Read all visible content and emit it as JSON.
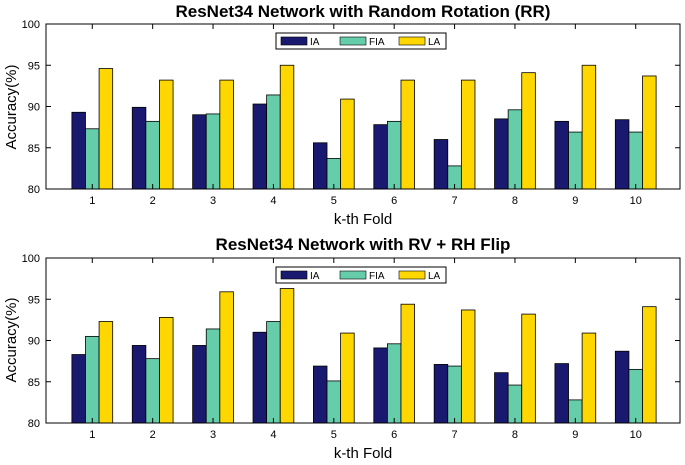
{
  "chart_data": [
    {
      "type": "bar",
      "title": "ResNet34 Network with Random Rotation (RR)",
      "xlabel": "k-th Fold",
      "ylabel": "Accuracy(%)",
      "ylim": [
        80,
        100
      ],
      "yticks": [
        80,
        85,
        90,
        95,
        100
      ],
      "categories": [
        "1",
        "2",
        "3",
        "4",
        "5",
        "6",
        "7",
        "8",
        "9",
        "10"
      ],
      "legend_position": "top-center",
      "series": [
        {
          "name": "IA",
          "color": "#191970",
          "values": [
            89.3,
            89.9,
            89.0,
            90.3,
            85.6,
            87.8,
            86.0,
            88.5,
            88.2,
            88.4
          ]
        },
        {
          "name": "FIA",
          "color": "#66CDAA",
          "values": [
            87.3,
            88.2,
            89.1,
            91.4,
            83.7,
            88.2,
            82.8,
            89.6,
            86.9,
            86.9
          ]
        },
        {
          "name": "LA",
          "color": "#FFD700",
          "values": [
            94.6,
            93.2,
            93.2,
            95.0,
            90.9,
            93.2,
            93.2,
            94.1,
            95.0,
            93.7
          ]
        }
      ]
    },
    {
      "type": "bar",
      "title": "ResNet34 Network with RV + RH Flip",
      "xlabel": "k-th Fold",
      "ylabel": "Accuracy(%)",
      "ylim": [
        80,
        100
      ],
      "yticks": [
        80,
        85,
        90,
        95,
        100
      ],
      "categories": [
        "1",
        "2",
        "3",
        "4",
        "5",
        "6",
        "7",
        "8",
        "9",
        "10"
      ],
      "legend_position": "top-center",
      "series": [
        {
          "name": "IA",
          "color": "#191970",
          "values": [
            88.3,
            89.4,
            89.4,
            91.0,
            86.9,
            89.1,
            87.1,
            86.1,
            87.2,
            88.7
          ]
        },
        {
          "name": "FIA",
          "color": "#66CDAA",
          "values": [
            90.5,
            87.8,
            91.4,
            92.3,
            85.1,
            89.6,
            86.9,
            84.6,
            82.8,
            86.5
          ]
        },
        {
          "name": "LA",
          "color": "#FFD700",
          "values": [
            92.3,
            92.8,
            95.9,
            96.3,
            90.9,
            94.4,
            93.7,
            93.2,
            90.9,
            94.1
          ]
        }
      ]
    }
  ]
}
